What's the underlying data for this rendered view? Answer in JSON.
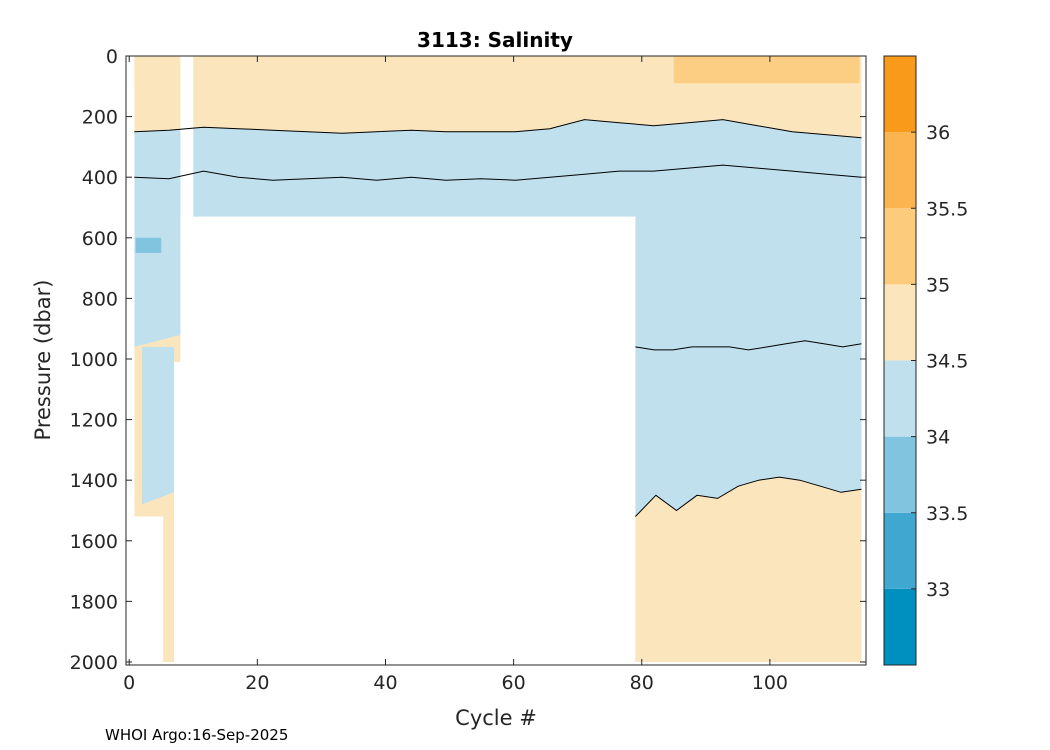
{
  "chart_data": {
    "type": "heatmap",
    "title": "3113:  Salinity",
    "xlabel": "Cycle #",
    "ylabel": "Pressure (dbar)",
    "xlim": [
      -0.5,
      115
    ],
    "ylim": [
      2010,
      0
    ],
    "y_reversed": true,
    "x_ticks": [
      0,
      20,
      40,
      60,
      80,
      100
    ],
    "y_ticks": [
      0,
      200,
      400,
      600,
      800,
      1000,
      1200,
      1400,
      1600,
      1800,
      2000
    ],
    "colorbar": {
      "levels": [
        32.5,
        33,
        33.5,
        34,
        34.5,
        35,
        35.5,
        36,
        36.5
      ],
      "colors": [
        "#0090bf",
        "#40a8d0",
        "#80c4e0",
        "#c0e0ee",
        "#fbe5bd",
        "#fccb7c",
        "#fcb450",
        "#f99a1a"
      ],
      "tick_labels": [
        "33",
        "33.5",
        "34",
        "34.5",
        "35",
        "35.5",
        "36"
      ]
    },
    "layers": [
      {
        "range": "34.5-35",
        "pressure_top": 0,
        "pressure_bottom": 250
      },
      {
        "range": "34-34.5",
        "pressure_top": 250,
        "pressure_bottom": 1450
      },
      {
        "range": "34.5-35",
        "pressure_top": 1450,
        "pressure_bottom": 2000
      },
      {
        "range": "35-35.5",
        "cycles": [
          85,
          114
        ],
        "pressure_top": 0,
        "pressure_bottom": 90
      },
      {
        "range": "33.5-34",
        "cycles": [
          1,
          5
        ],
        "pressure_top": 600,
        "pressure_bottom": 650
      }
    ],
    "contours": [
      {
        "level": 34.5,
        "pressure": [
          250,
          245,
          235,
          240,
          245,
          250,
          255,
          250,
          245,
          250,
          250,
          250,
          240,
          210,
          220,
          230,
          220,
          210,
          230,
          250,
          260,
          270
        ]
      },
      {
        "level": 34.0,
        "pressure": [
          400,
          405,
          380,
          400,
          410,
          405,
          400,
          410,
          400,
          410,
          405,
          410,
          400,
          390,
          380,
          380,
          370,
          360,
          370,
          380,
          390,
          400
        ]
      },
      {
        "level": 34.0,
        "pressure": [
          960,
          970,
          970,
          960,
          960,
          960,
          970,
          960,
          950,
          940,
          950,
          960,
          950
        ]
      },
      {
        "level": 34.5,
        "pressure": [
          1520,
          1450,
          1500,
          1450,
          1460,
          1420,
          1400,
          1390,
          1400,
          1420,
          1440,
          1430
        ]
      }
    ],
    "missing_data_regions": [
      {
        "cycles": [
          8,
          79
        ],
        "pressure_top": 530,
        "pressure_bottom": 2000
      },
      {
        "cycles": [
          8,
          10
        ],
        "pressure_top": 0,
        "pressure_bottom": 2000
      }
    ]
  },
  "footer": "WHOI Argo:16-Sep-2025"
}
